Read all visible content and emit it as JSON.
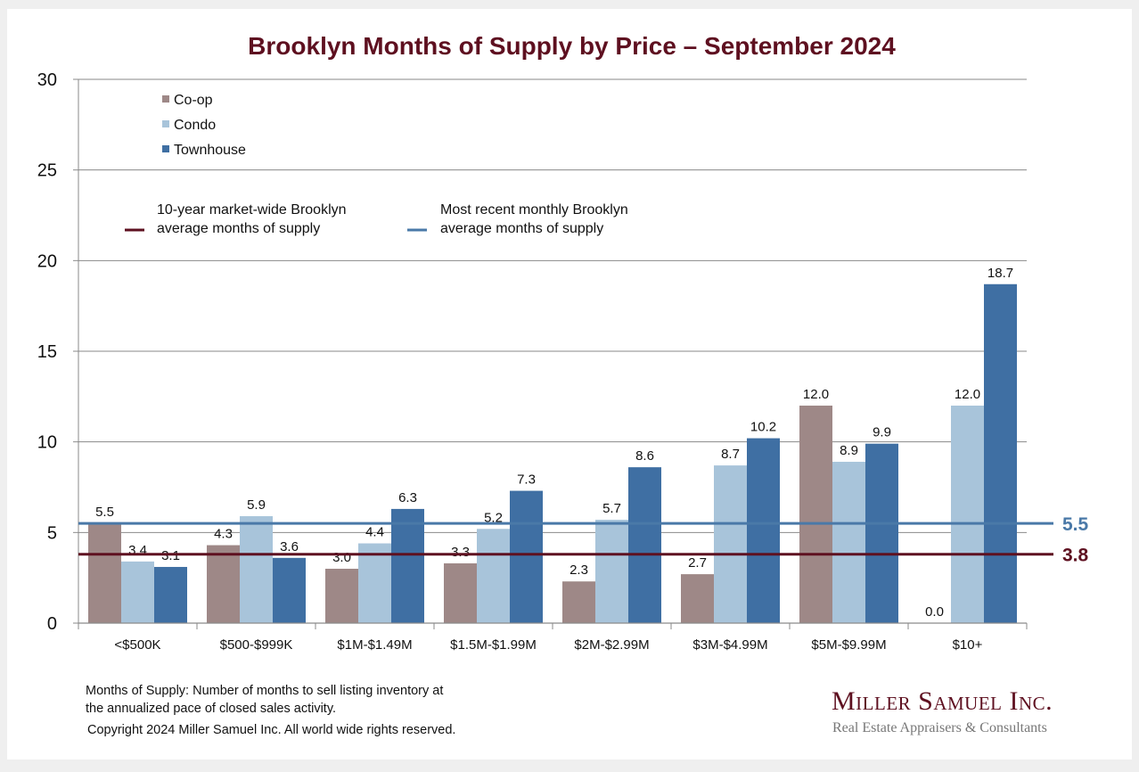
{
  "chart_data": {
    "type": "bar",
    "title": "Brooklyn Months of Supply by Price – September 2024",
    "xlabel": "",
    "ylabel": "",
    "ylim": [
      0,
      30
    ],
    "yticks": [
      "0",
      "5",
      "10",
      "15",
      "20",
      "25",
      "30"
    ],
    "ytick_values": [
      0,
      5,
      10,
      15,
      20,
      25,
      30
    ],
    "grid": true,
    "categories": [
      "<$500K",
      "$500-$999K",
      "$1M-$1.49M",
      "$1.5M-$1.99M",
      "$2M-$2.99M",
      "$3M-$4.99M",
      "$5M-$9.99M",
      "$10+"
    ],
    "series": [
      {
        "name": "Co-op",
        "color": "#9e8887",
        "values": [
          5.5,
          4.3,
          3.0,
          3.3,
          2.3,
          2.7,
          12.0,
          0.0
        ],
        "labels": [
          "5.5",
          "4.3",
          "3.0",
          "3.3",
          "2.3",
          "2.7",
          "12.0",
          "0.0"
        ]
      },
      {
        "name": "Condo",
        "color": "#a8c4da",
        "values": [
          3.4,
          5.9,
          4.4,
          5.2,
          5.7,
          8.7,
          8.9,
          12.0
        ],
        "labels": [
          "3.4",
          "5.9",
          "4.4",
          "5.2",
          "5.7",
          "8.7",
          "8.9",
          "12.0"
        ]
      },
      {
        "name": "Townhouse",
        "color": "#3f6fa3",
        "values": [
          3.1,
          3.6,
          6.3,
          7.3,
          8.6,
          10.2,
          9.9,
          18.7
        ],
        "labels": [
          "3.1",
          "3.6",
          "6.3",
          "7.3",
          "8.6",
          "10.2",
          "9.9",
          "18.7"
        ]
      }
    ],
    "legend_position": "top-left",
    "reference_lines": [
      {
        "name": "10-year market-wide Brooklyn average months of supply",
        "label_line1": "10-year market-wide Brooklyn",
        "label_line2": "average months of supply",
        "value": 3.8,
        "value_label": "3.8",
        "color": "#5e1020"
      },
      {
        "name": "Most recent monthly Brooklyn average months of supply",
        "label_line1": "Most recent monthly Brooklyn",
        "label_line2": "average months of supply",
        "value": 5.5,
        "value_label": "5.5",
        "color": "#4a79a8"
      }
    ]
  },
  "notes": {
    "definition_line1": "Months of Supply: Number of months to sell listing inventory at",
    "definition_line2": "the annualized pace of closed sales activity.",
    "copyright": "Copyright 2024 Miller Samuel Inc.  All world wide rights reserved."
  },
  "branding": {
    "company": "Miller Samuel Inc.",
    "tagline": "Real Estate Appraisers & Consultants"
  }
}
